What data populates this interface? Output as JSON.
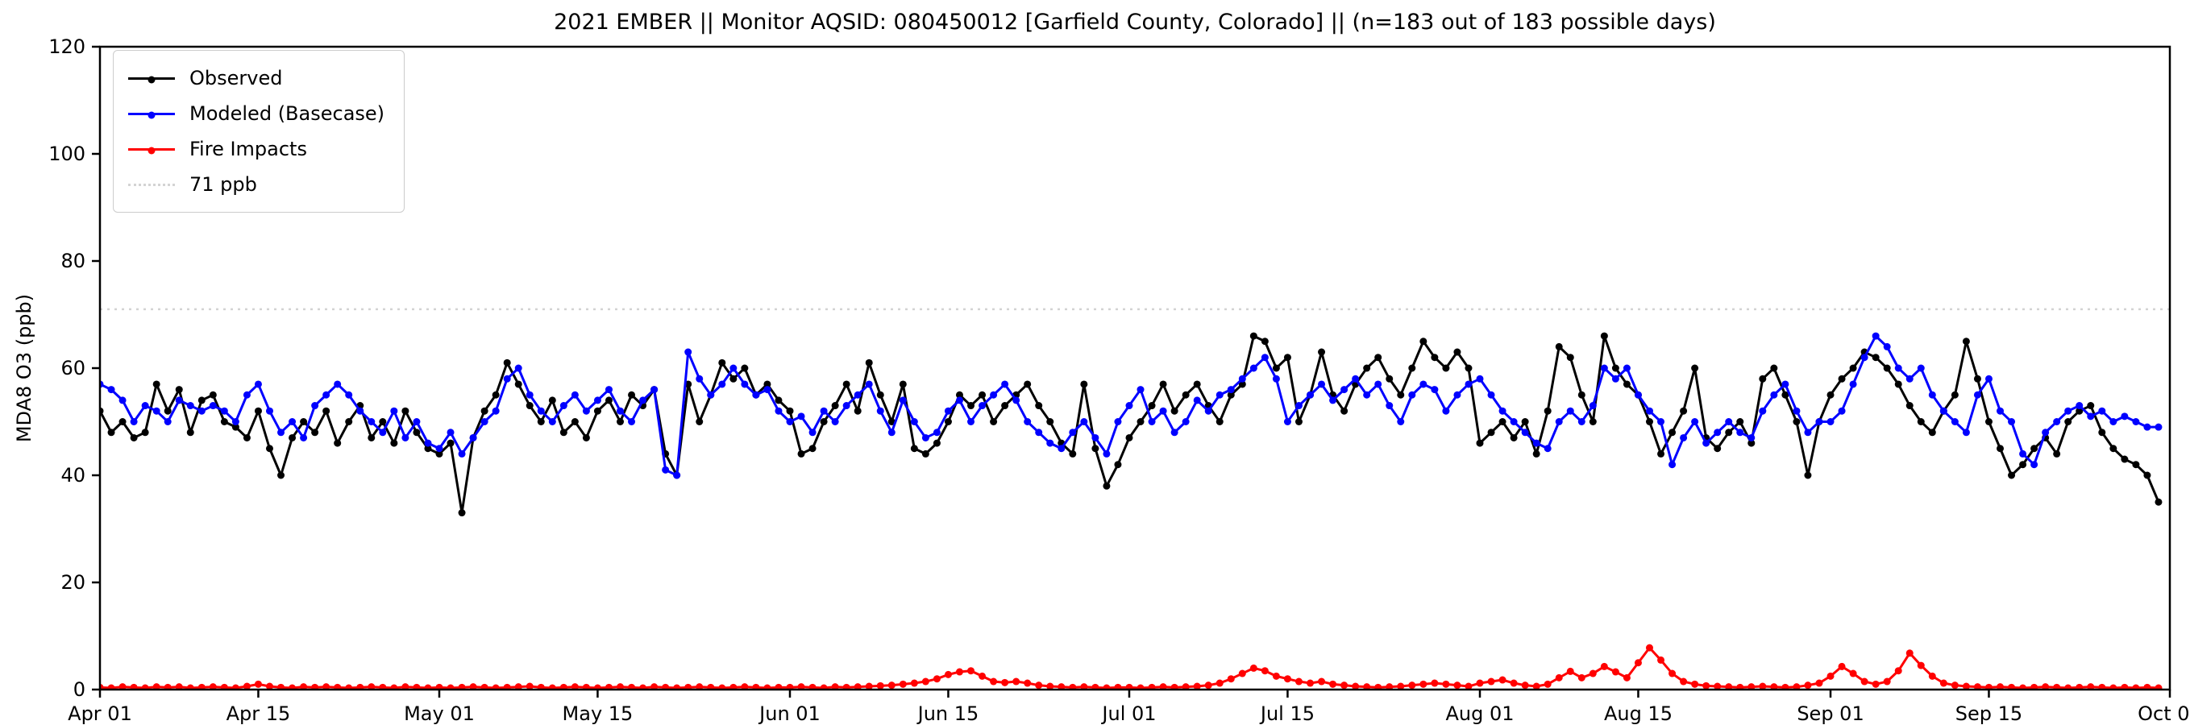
{
  "title": "2021 EMBER || Monitor AQSID: 080450012 [Garfield County, Colorado] || (n=183 out of 183 possible days)",
  "axes": {
    "ylabel": "MDA8 O3 (ppb)",
    "ylim": [
      0,
      120
    ],
    "yticks": [
      0,
      20,
      40,
      60,
      80,
      100,
      120
    ],
    "xtick_labels": [
      "Apr 01",
      "Apr 15",
      "May 01",
      "May 15",
      "Jun 01",
      "Jun 15",
      "Jul 01",
      "Jul 15",
      "Aug 01",
      "Aug 15",
      "Sep 01",
      "Sep 15",
      "Oct 01"
    ],
    "xtick_days": [
      0,
      14,
      30,
      44,
      61,
      75,
      91,
      105,
      122,
      136,
      153,
      167,
      183
    ]
  },
  "legend": {
    "entries": [
      {
        "label": "Observed",
        "color": "#000000",
        "style": "solid"
      },
      {
        "label": "Modeled (Basecase)",
        "color": "#0000ff",
        "style": "solid"
      },
      {
        "label": "Fire Impacts",
        "color": "#ff0000",
        "style": "solid"
      },
      {
        "label": "71 ppb",
        "color": "#d3d3d3",
        "style": "dotted"
      }
    ]
  },
  "chart_data": {
    "type": "line",
    "title": "2021 EMBER || Monitor AQSID: 080450012 [Garfield County, Colorado] || (n=183 out of 183 possible days)",
    "xlabel": "",
    "ylabel": "MDA8 O3 (ppb)",
    "ylim": [
      0,
      120
    ],
    "x_start": "Apr 01",
    "x_end": "Sep 30",
    "x_max": 183,
    "n_points": 183,
    "grid": false,
    "legend_position": "upper-left",
    "reference_line": {
      "label": "71 ppb",
      "y": 71,
      "style": "dotted",
      "color": "#d3d3d3"
    },
    "series": [
      {
        "name": "Observed",
        "color": "#000000",
        "marker": "circle",
        "values": [
          52,
          48,
          50,
          47,
          48,
          57,
          52,
          56,
          48,
          54,
          55,
          50,
          49,
          47,
          52,
          45,
          40,
          47,
          50,
          48,
          52,
          46,
          50,
          53,
          47,
          50,
          46,
          52,
          48,
          45,
          44,
          46,
          33,
          47,
          52,
          55,
          61,
          57,
          53,
          50,
          54,
          48,
          50,
          47,
          52,
          54,
          50,
          55,
          53,
          56,
          44,
          40,
          57,
          50,
          55,
          61,
          58,
          60,
          55,
          57,
          54,
          52,
          44,
          45,
          50,
          53,
          57,
          52,
          61,
          55,
          50,
          57,
          45,
          44,
          46,
          50,
          55,
          53,
          55,
          50,
          53,
          55,
          57,
          53,
          50,
          46,
          44,
          57,
          45,
          38,
          42,
          47,
          50,
          53,
          57,
          52,
          55,
          57,
          53,
          50,
          55,
          57,
          66,
          65,
          60,
          62,
          50,
          55,
          63,
          55,
          52,
          57,
          60,
          62,
          58,
          55,
          60,
          65,
          62,
          60,
          63,
          60,
          46,
          48,
          50,
          47,
          50,
          44,
          52,
          64,
          62,
          55,
          50,
          66,
          60,
          57,
          55,
          50,
          44,
          48,
          52,
          60,
          47,
          45,
          48,
          50,
          46,
          58,
          60,
          55,
          50,
          40,
          50,
          55,
          58,
          60,
          63,
          62,
          60,
          57,
          53,
          50,
          48,
          52,
          55,
          65,
          58,
          50,
          45,
          40,
          42,
          45,
          47,
          44,
          50,
          52,
          53,
          48,
          45,
          43,
          42,
          40,
          35
        ]
      },
      {
        "name": "Modeled (Basecase)",
        "color": "#0000ff",
        "marker": "circle",
        "values": [
          57,
          56,
          54,
          50,
          53,
          52,
          50,
          54,
          53,
          52,
          53,
          52,
          50,
          55,
          57,
          52,
          48,
          50,
          47,
          53,
          55,
          57,
          55,
          52,
          50,
          48,
          52,
          47,
          50,
          46,
          45,
          48,
          44,
          47,
          50,
          52,
          58,
          60,
          55,
          52,
          50,
          53,
          55,
          52,
          54,
          56,
          52,
          50,
          54,
          56,
          41,
          40,
          63,
          58,
          55,
          57,
          60,
          57,
          55,
          56,
          52,
          50,
          51,
          48,
          52,
          50,
          53,
          55,
          57,
          52,
          48,
          54,
          50,
          47,
          48,
          52,
          54,
          50,
          53,
          55,
          57,
          54,
          50,
          48,
          46,
          45,
          48,
          50,
          47,
          44,
          50,
          53,
          56,
          50,
          52,
          48,
          50,
          54,
          52,
          55,
          56,
          58,
          60,
          62,
          58,
          50,
          53,
          55,
          57,
          54,
          56,
          58,
          55,
          57,
          53,
          50,
          55,
          57,
          56,
          52,
          55,
          57,
          58,
          55,
          52,
          50,
          48,
          46,
          45,
          50,
          52,
          50,
          53,
          60,
          58,
          60,
          55,
          52,
          50,
          42,
          47,
          50,
          46,
          48,
          50,
          48,
          47,
          52,
          55,
          57,
          52,
          48,
          50,
          50,
          52,
          57,
          62,
          66,
          64,
          60,
          58,
          60,
          55,
          52,
          50,
          48,
          55,
          58,
          52,
          50,
          44,
          42,
          48,
          50,
          52,
          53,
          51,
          52,
          50,
          51,
          50,
          49,
          49
        ]
      },
      {
        "name": "Fire Impacts",
        "color": "#ff0000",
        "marker": "circle",
        "values": [
          0.4,
          0.3,
          0.5,
          0.4,
          0.3,
          0.5,
          0.4,
          0.5,
          0.3,
          0.4,
          0.5,
          0.4,
          0.3,
          0.6,
          1.0,
          0.6,
          0.4,
          0.3,
          0.5,
          0.4,
          0.5,
          0.4,
          0.3,
          0.4,
          0.5,
          0.4,
          0.3,
          0.5,
          0.4,
          0.3,
          0.4,
          0.3,
          0.4,
          0.5,
          0.4,
          0.3,
          0.4,
          0.5,
          0.6,
          0.4,
          0.3,
          0.4,
          0.5,
          0.4,
          0.3,
          0.4,
          0.5,
          0.4,
          0.3,
          0.5,
          0.4,
          0.3,
          0.4,
          0.5,
          0.4,
          0.3,
          0.4,
          0.5,
          0.4,
          0.3,
          0.4,
          0.4,
          0.5,
          0.4,
          0.3,
          0.5,
          0.4,
          0.5,
          0.6,
          0.7,
          0.8,
          1.0,
          1.2,
          1.5,
          2.0,
          2.8,
          3.3,
          3.5,
          2.5,
          1.5,
          1.3,
          1.5,
          1.2,
          0.8,
          0.6,
          0.5,
          0.4,
          0.5,
          0.4,
          0.3,
          0.4,
          0.4,
          0.3,
          0.4,
          0.5,
          0.4,
          0.5,
          0.6,
          0.8,
          1.2,
          2.0,
          3.0,
          4.0,
          3.5,
          2.5,
          2.0,
          1.5,
          1.2,
          1.5,
          1.0,
          0.8,
          0.6,
          0.5,
          0.4,
          0.5,
          0.6,
          0.8,
          1.0,
          1.2,
          1.0,
          0.8,
          0.6,
          1.2,
          1.5,
          1.8,
          1.2,
          0.8,
          0.6,
          1.0,
          2.2,
          3.4,
          2.2,
          3.0,
          4.3,
          3.3,
          2.2,
          5.0,
          7.8,
          5.5,
          3.0,
          1.5,
          1.0,
          0.7,
          0.6,
          0.5,
          0.4,
          0.5,
          0.6,
          0.5,
          0.4,
          0.5,
          0.8,
          1.2,
          2.5,
          4.3,
          3.0,
          1.5,
          1.0,
          1.5,
          3.5,
          6.8,
          4.5,
          2.5,
          1.2,
          0.8,
          0.6,
          0.5,
          0.4,
          0.5,
          0.4,
          0.3,
          0.4,
          0.5,
          0.4,
          0.3,
          0.4,
          0.5,
          0.4,
          0.3,
          0.4,
          0.3,
          0.4,
          0.3
        ]
      }
    ]
  }
}
